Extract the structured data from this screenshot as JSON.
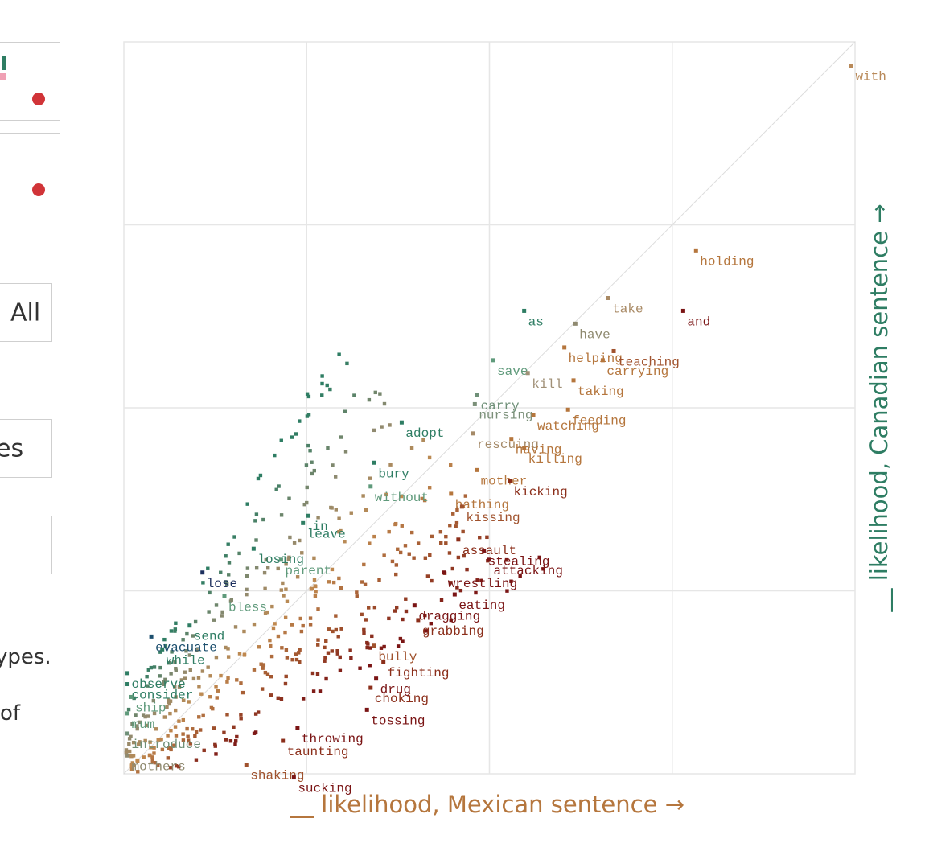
{
  "colors": {
    "teal": "#2e7d63",
    "orange": "#b5763d",
    "red": "#d13438",
    "darkred": "#7a1414",
    "navy": "#1c2f5e",
    "pink": "#f0a0b4"
  },
  "left_panel": {
    "box3_label": "All",
    "box4_label": "es",
    "text1": "ypes.",
    "text2": "of"
  },
  "chart_data": {
    "type": "scatter",
    "xlabel": "__ likelihood, Mexican sentence →",
    "ylabel": "__ likelihood, Canadian sentence →",
    "xlim": [
      0,
      4
    ],
    "ylim": [
      0,
      4
    ],
    "grid": true,
    "diagonal": true,
    "labeled_points": [
      {
        "label": "with",
        "x": 3.98,
        "y": 3.87,
        "color": "#b98a5a"
      },
      {
        "label": "holding",
        "x": 3.13,
        "y": 2.86,
        "color": "#b5763d"
      },
      {
        "label": "and",
        "x": 3.06,
        "y": 2.53,
        "color": "#7a1414"
      },
      {
        "label": "take",
        "x": 2.65,
        "y": 2.6,
        "color": "#a98a65"
      },
      {
        "label": "as",
        "x": 2.19,
        "y": 2.53,
        "color": "#2e7d63"
      },
      {
        "label": "have",
        "x": 2.47,
        "y": 2.46,
        "color": "#8f8a70"
      },
      {
        "label": "helping",
        "x": 2.41,
        "y": 2.33,
        "color": "#b5763d"
      },
      {
        "label": "teaching",
        "x": 2.68,
        "y": 2.31,
        "color": "#a0522d"
      },
      {
        "label": "carrying",
        "x": 2.62,
        "y": 2.26,
        "color": "#b5763d"
      },
      {
        "label": "save",
        "x": 2.02,
        "y": 2.26,
        "color": "#5f9a7b"
      },
      {
        "label": "kill",
        "x": 2.21,
        "y": 2.19,
        "color": "#a09077"
      },
      {
        "label": "taking",
        "x": 2.46,
        "y": 2.15,
        "color": "#b5763d"
      },
      {
        "label": "carry",
        "x": 1.93,
        "y": 2.07,
        "color": "#6f9078"
      },
      {
        "label": "nursing",
        "x": 1.92,
        "y": 2.02,
        "color": "#7a8f78"
      },
      {
        "label": "feeding",
        "x": 2.43,
        "y": 1.99,
        "color": "#b5763d"
      },
      {
        "label": "watching",
        "x": 2.24,
        "y": 1.96,
        "color": "#b5763d"
      },
      {
        "label": "adopt",
        "x": 1.52,
        "y": 1.92,
        "color": "#2e7d63"
      },
      {
        "label": "rescuing",
        "x": 1.91,
        "y": 1.86,
        "color": "#a58a68"
      },
      {
        "label": "having",
        "x": 2.12,
        "y": 1.83,
        "color": "#b5763d"
      },
      {
        "label": "killing",
        "x": 2.19,
        "y": 1.78,
        "color": "#b5763d"
      },
      {
        "label": "bury",
        "x": 1.37,
        "y": 1.7,
        "color": "#2e7d63"
      },
      {
        "label": "mother",
        "x": 1.93,
        "y": 1.66,
        "color": "#b5763d"
      },
      {
        "label": "kicking",
        "x": 2.11,
        "y": 1.6,
        "color": "#8b2e1a"
      },
      {
        "label": "without",
        "x": 1.35,
        "y": 1.57,
        "color": "#5f9a7b"
      },
      {
        "label": "bathing",
        "x": 1.79,
        "y": 1.53,
        "color": "#b5763d"
      },
      {
        "label": "kissing",
        "x": 1.85,
        "y": 1.46,
        "color": "#a0522d"
      },
      {
        "label": "in",
        "x": 1.01,
        "y": 1.41,
        "color": "#2e7d63"
      },
      {
        "label": "leave",
        "x": 0.98,
        "y": 1.37,
        "color": "#2e7d63"
      },
      {
        "label": "assault",
        "x": 1.83,
        "y": 1.28,
        "color": "#8b2e1a"
      },
      {
        "label": "stealing",
        "x": 1.97,
        "y": 1.22,
        "color": "#7a1414"
      },
      {
        "label": "losing",
        "x": 0.71,
        "y": 1.23,
        "color": "#2e7d63"
      },
      {
        "label": "parent",
        "x": 0.86,
        "y": 1.17,
        "color": "#5f9a7b"
      },
      {
        "label": "attacking",
        "x": 2.0,
        "y": 1.17,
        "color": "#7a1414"
      },
      {
        "label": "lose",
        "x": 0.43,
        "y": 1.1,
        "color": "#1c2f5e"
      },
      {
        "label": "wrestling",
        "x": 1.75,
        "y": 1.1,
        "color": "#7a1414"
      },
      {
        "label": "bless",
        "x": 0.55,
        "y": 0.97,
        "color": "#5f9a7b"
      },
      {
        "label": "eating",
        "x": 1.81,
        "y": 0.98,
        "color": "#7a1414"
      },
      {
        "label": "dragging",
        "x": 1.59,
        "y": 0.92,
        "color": "#7a1414"
      },
      {
        "label": "grabbing",
        "x": 1.61,
        "y": 0.84,
        "color": "#8b2e1a"
      },
      {
        "label": "send",
        "x": 0.36,
        "y": 0.81,
        "color": "#2e7d63"
      },
      {
        "label": "evacuate",
        "x": 0.15,
        "y": 0.75,
        "color": "#1c4f6e"
      },
      {
        "label": "while",
        "x": 0.21,
        "y": 0.68,
        "color": "#2e7d63"
      },
      {
        "label": "bully",
        "x": 1.37,
        "y": 0.7,
        "color": "#a0522d"
      },
      {
        "label": "fighting",
        "x": 1.42,
        "y": 0.61,
        "color": "#8b2e1a"
      },
      {
        "label": "observe",
        "x": 0.02,
        "y": 0.55,
        "color": "#2e7d63"
      },
      {
        "label": "drug",
        "x": 1.38,
        "y": 0.52,
        "color": "#7a1414"
      },
      {
        "label": "consider",
        "x": 0.02,
        "y": 0.49,
        "color": "#2e7d63"
      },
      {
        "label": "choking",
        "x": 1.35,
        "y": 0.47,
        "color": "#8b2e1a"
      },
      {
        "label": "ship",
        "x": 0.04,
        "y": 0.42,
        "color": "#5f9a7b"
      },
      {
        "label": "tossing",
        "x": 1.33,
        "y": 0.35,
        "color": "#7a1414"
      },
      {
        "label": "mum",
        "x": 0.02,
        "y": 0.33,
        "color": "#5f9a7b"
      },
      {
        "label": "throwing",
        "x": 0.95,
        "y": 0.25,
        "color": "#7a1414"
      },
      {
        "label": "introduce",
        "x": 0.02,
        "y": 0.22,
        "color": "#6f9078"
      },
      {
        "label": "taunting",
        "x": 0.87,
        "y": 0.18,
        "color": "#8b2e1a"
      },
      {
        "label": "mothers",
        "x": 0.02,
        "y": 0.1,
        "color": "#8f8a70"
      },
      {
        "label": "shaking",
        "x": 0.67,
        "y": 0.05,
        "color": "#a0522d"
      },
      {
        "label": "sucking",
        "x": 0.93,
        "y": -0.02,
        "color": "#7a1414"
      }
    ]
  }
}
